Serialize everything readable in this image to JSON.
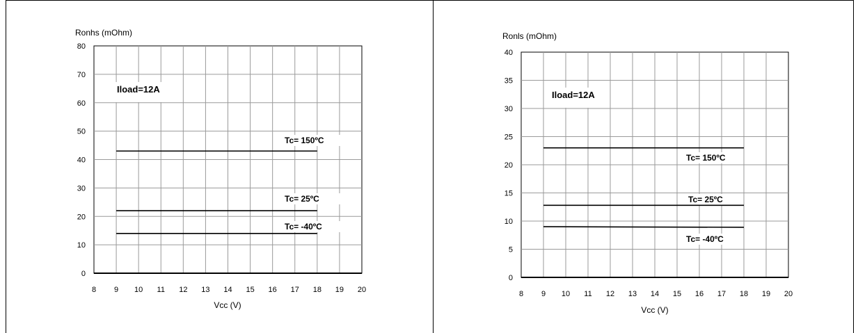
{
  "chart_data": [
    {
      "type": "line",
      "title": "",
      "ylabel": "Ronhs (mOhm)",
      "xlabel": "Vcc (V)",
      "xlim": [
        8,
        20
      ],
      "ylim": [
        0,
        80
      ],
      "x_ticks": [
        8,
        9,
        10,
        11,
        12,
        13,
        14,
        15,
        16,
        17,
        18,
        19,
        20
      ],
      "y_ticks": [
        0,
        10,
        20,
        30,
        40,
        50,
        60,
        70,
        80
      ],
      "grid": true,
      "annotation": "Iload=12A",
      "series": [
        {
          "name": "Tc= 150ºC",
          "x": [
            9,
            18
          ],
          "y": [
            43,
            43
          ]
        },
        {
          "name": "Tc= 25ºC",
          "x": [
            9,
            18
          ],
          "y": [
            22,
            22
          ]
        },
        {
          "name": "Tc= -40ºC",
          "x": [
            9,
            18
          ],
          "y": [
            14,
            14
          ]
        }
      ]
    },
    {
      "type": "line",
      "title": "",
      "ylabel": "Ronls (mOhm)",
      "xlabel": "Vcc (V)",
      "xlim": [
        8,
        20
      ],
      "ylim": [
        0,
        40
      ],
      "x_ticks": [
        8,
        9,
        10,
        11,
        12,
        13,
        14,
        15,
        16,
        17,
        18,
        19,
        20
      ],
      "y_ticks": [
        0,
        5,
        10,
        15,
        20,
        25,
        30,
        35,
        40
      ],
      "grid": true,
      "annotation": "Iload=12A",
      "series": [
        {
          "name": "Tc= 150ºC",
          "x": [
            9,
            18
          ],
          "y": [
            23,
            23
          ]
        },
        {
          "name": "Tc= 25ºC",
          "x": [
            9,
            18
          ],
          "y": [
            12.8,
            12.8
          ]
        },
        {
          "name": "Tc= -40ºC",
          "x": [
            9,
            18
          ],
          "y": [
            9,
            8.9
          ]
        }
      ]
    }
  ]
}
